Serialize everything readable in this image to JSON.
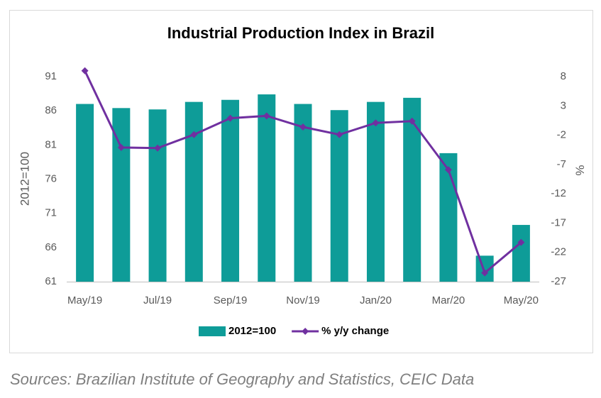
{
  "chart_data": {
    "type": "bar-line",
    "title": "Industrial Production Index in Brazil",
    "categories": [
      "May/19",
      null,
      "Jul/19",
      null,
      "Sep/19",
      null,
      "Nov/19",
      null,
      "Jan/20",
      null,
      "Mar/20",
      null,
      "May/20"
    ],
    "series": [
      {
        "name": "2012=100",
        "type": "bar",
        "color": "#0e9c98",
        "values": [
          87.0,
          86.4,
          86.2,
          87.3,
          87.6,
          88.4,
          87.0,
          86.1,
          87.3,
          87.9,
          79.8,
          64.8,
          69.3
        ]
      },
      {
        "name": "% y/y change",
        "type": "line",
        "axis": "y2",
        "color": "#7030a0",
        "values": [
          9.0,
          -4.1,
          -4.2,
          -1.9,
          0.9,
          1.3,
          -0.6,
          -1.9,
          0.1,
          0.4,
          -7.9,
          -25.5,
          -20.3
        ]
      }
    ],
    "ylabel": "2012=100",
    "y2label": "%",
    "ylim": [
      61,
      91
    ],
    "yticks": [
      61,
      66,
      71,
      76,
      81,
      86,
      91
    ],
    "y2lim": [
      -27,
      8
    ],
    "y2ticks": [
      -27,
      -22,
      -17,
      -12,
      -7,
      -2,
      3,
      8
    ],
    "grid": false,
    "legend": "bottom",
    "source": "Sources: Brazilian Institute of Geography and Statistics, CEIC Data"
  }
}
